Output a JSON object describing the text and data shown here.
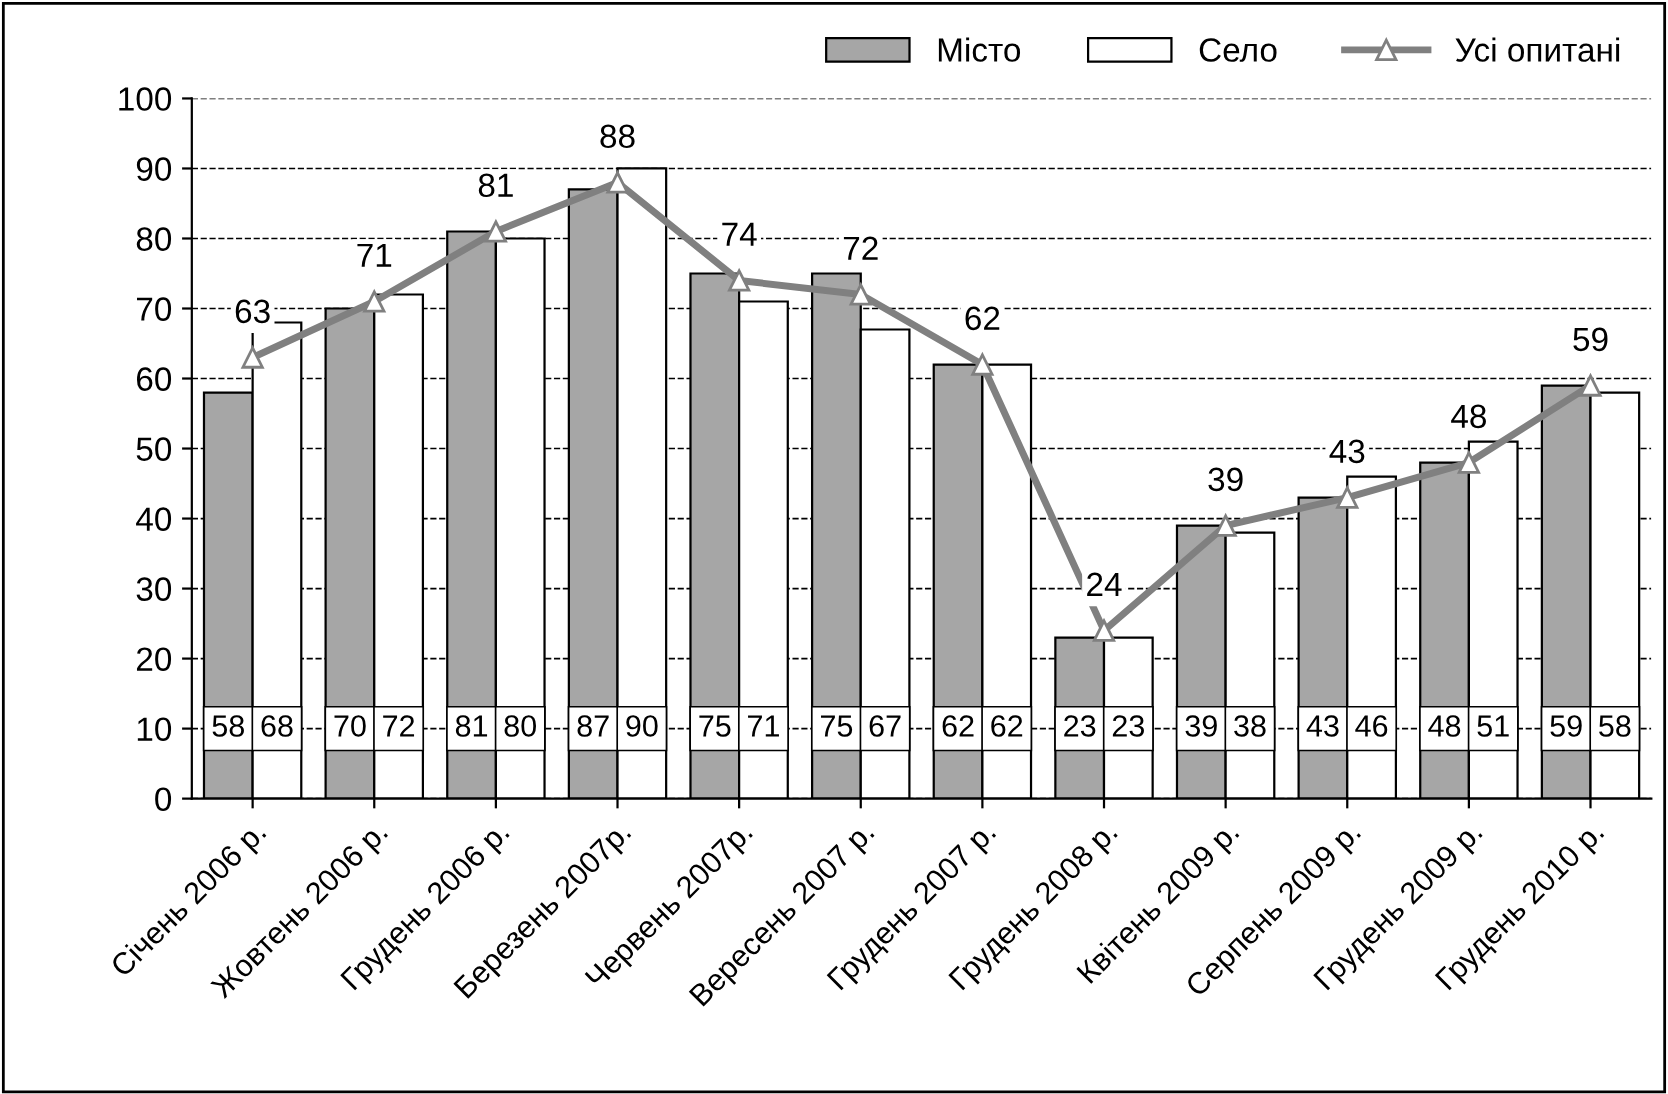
{
  "chart_data": {
    "type": "bar",
    "categories": [
      "Січень 2006 р.",
      "Жовтень 2006 р.",
      "Грудень 2006 р.",
      "Березень 2007р.",
      "Червень 2007р.",
      "Вересень 2007 р.",
      "Грудень 2007 р.",
      "Грудень 2008 р.",
      "Квітень 2009 р.",
      "Серпень 2009 р.",
      "Грудень 2009 р.",
      "Грудень 2010 р."
    ],
    "series": [
      {
        "name": "Місто",
        "color": "#a6a6a6",
        "values": [
          58,
          70,
          81,
          87,
          75,
          75,
          62,
          23,
          39,
          43,
          48,
          59
        ]
      },
      {
        "name": "Село",
        "color": "#ffffff",
        "values": [
          68,
          72,
          80,
          90,
          71,
          67,
          62,
          23,
          38,
          46,
          51,
          58
        ]
      },
      {
        "name": "Усі опитані",
        "type": "line",
        "color": "#808080",
        "marker": "triangle",
        "values": [
          63,
          71,
          81,
          88,
          74,
          72,
          62,
          24,
          39,
          43,
          48,
          59
        ]
      }
    ],
    "ylim": [
      0,
      100
    ],
    "yticks": [
      0,
      10,
      20,
      30,
      40,
      50,
      60,
      70,
      80,
      90,
      100
    ],
    "grid": "y",
    "legend": "top right",
    "data_labels": true
  }
}
